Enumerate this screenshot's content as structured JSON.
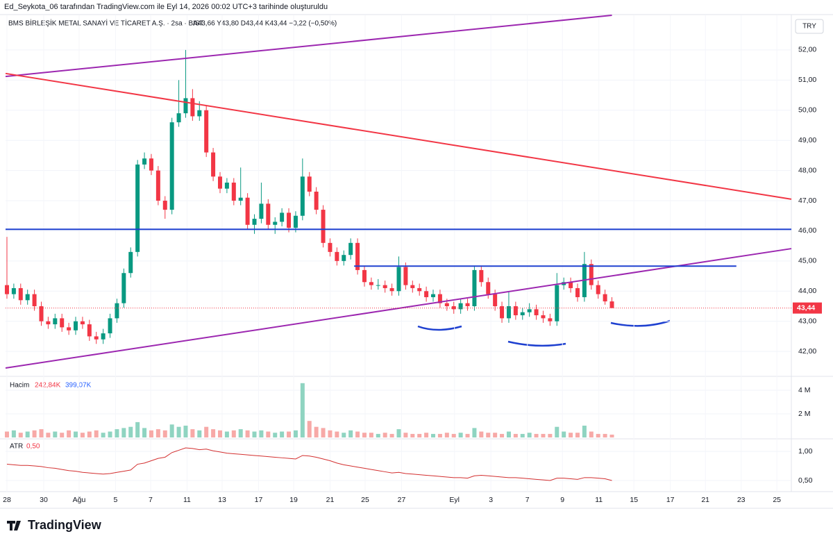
{
  "header": {
    "caption": "Ed_Seykota_06 tarafından TradingView.com ile Eyl 14, 2026 00:02 UTC+3 tarihinde oluşturuldu",
    "symbol": "BMS BİRLEŞİK METAL SANAYİ VE TİCARET A.Ş. · 2sa · BIST",
    "ohlc": "A43,66 Y43,80 D43,44 K43,44 −0,22 (−0,50%)",
    "currency": "TRY"
  },
  "footer": {
    "brand": "TradingView"
  },
  "chart_data": {
    "type": "candlestick",
    "up_color": "#089981",
    "down_color": "#f23645",
    "xlim": [
      -0.2,
      114.1
    ],
    "ylim": [
      41.22,
      53.15
    ],
    "yticks": [
      {
        "value": 52,
        "label": "52,00"
      },
      {
        "value": 51,
        "label": "51,00"
      },
      {
        "value": 50,
        "label": "50,00"
      },
      {
        "value": 49,
        "label": "49,00"
      },
      {
        "value": 48,
        "label": "48,00"
      },
      {
        "value": 47,
        "label": "47,00"
      },
      {
        "value": 46,
        "label": "46,00"
      },
      {
        "value": 45,
        "label": "45,00"
      },
      {
        "value": 44,
        "label": "44,00"
      },
      {
        "value": 43,
        "label": "43,00"
      },
      {
        "value": 42,
        "label": "42,00"
      }
    ],
    "xticks": [
      {
        "value": 0,
        "label": "28"
      },
      {
        "value": 5.35,
        "label": "30"
      },
      {
        "value": 10.5,
        "label": "Ağu"
      },
      {
        "value": 15.8,
        "label": "5"
      },
      {
        "value": 20.9,
        "label": "7"
      },
      {
        "value": 26.2,
        "label": "11"
      },
      {
        "value": 31.3,
        "label": "13"
      },
      {
        "value": 36.6,
        "label": "17"
      },
      {
        "value": 41.7,
        "label": "19"
      },
      {
        "value": 47,
        "label": "21"
      },
      {
        "value": 52.1,
        "label": "25"
      },
      {
        "value": 57.4,
        "label": "27"
      },
      {
        "value": 65.1,
        "label": "Eyl"
      },
      {
        "value": 70.4,
        "label": "3"
      },
      {
        "value": 75.7,
        "label": "7"
      },
      {
        "value": 80.8,
        "label": "9"
      },
      {
        "value": 86.1,
        "label": "11"
      },
      {
        "value": 91.2,
        "label": "15"
      },
      {
        "value": 96.5,
        "label": "17"
      },
      {
        "value": 101.6,
        "label": "21"
      },
      {
        "value": 106.8,
        "label": "23"
      },
      {
        "value": 112,
        "label": "25"
      }
    ],
    "last_price": {
      "value": 43.44,
      "label": "43,44"
    },
    "candles": [
      [
        44.2,
        45.8,
        43.75,
        43.9
      ],
      [
        43.9,
        44.25,
        43.75,
        44.1
      ],
      [
        44.1,
        44.25,
        43.55,
        43.7
      ],
      [
        43.7,
        44.05,
        43.55,
        43.9
      ],
      [
        43.9,
        44.05,
        43.35,
        43.5
      ],
      [
        43.5,
        43.65,
        42.85,
        43.0
      ],
      [
        43.0,
        43.15,
        42.75,
        42.9
      ],
      [
        42.9,
        43.25,
        42.75,
        43.1
      ],
      [
        43.1,
        43.25,
        42.65,
        42.8
      ],
      [
        42.8,
        42.95,
        42.55,
        42.7
      ],
      [
        42.7,
        43.15,
        42.55,
        43.0
      ],
      [
        43.0,
        43.15,
        42.75,
        42.9
      ],
      [
        42.9,
        43.05,
        42.35,
        42.5
      ],
      [
        42.5,
        42.65,
        42.25,
        42.4
      ],
      [
        42.4,
        42.75,
        42.25,
        42.6
      ],
      [
        42.6,
        43.25,
        42.45,
        43.1
      ],
      [
        43.1,
        43.75,
        42.95,
        43.6
      ],
      [
        43.6,
        44.75,
        43.45,
        44.6
      ],
      [
        44.6,
        45.45,
        44.45,
        45.3
      ],
      [
        45.3,
        48.35,
        45.15,
        48.2
      ],
      [
        48.2,
        48.6,
        48.05,
        48.4
      ],
      [
        48.4,
        48.55,
        47.85,
        48.0
      ],
      [
        48.0,
        48.15,
        46.85,
        47.0
      ],
      [
        47.0,
        47.15,
        46.4,
        46.7
      ],
      [
        46.7,
        49.75,
        46.55,
        49.6
      ],
      [
        49.6,
        51.0,
        49.45,
        49.9
      ],
      [
        49.9,
        52.0,
        49.75,
        50.4
      ],
      [
        50.4,
        50.7,
        49.65,
        49.8
      ],
      [
        49.8,
        50.3,
        49.65,
        50.0
      ],
      [
        50.0,
        50.15,
        48.45,
        48.6
      ],
      [
        48.6,
        48.75,
        47.65,
        47.8
      ],
      [
        47.8,
        47.95,
        47.25,
        47.4
      ],
      [
        47.4,
        47.75,
        47.25,
        47.6
      ],
      [
        47.6,
        47.75,
        46.85,
        47.0
      ],
      [
        47.0,
        48.1,
        46.85,
        47.1
      ],
      [
        47.1,
        47.25,
        46.05,
        46.2
      ],
      [
        46.2,
        46.55,
        45.9,
        46.4
      ],
      [
        46.4,
        47.6,
        46.25,
        46.9
      ],
      [
        46.9,
        47.05,
        46.05,
        46.2
      ],
      [
        46.2,
        46.45,
        45.9,
        46.3
      ],
      [
        46.3,
        46.75,
        46.15,
        46.6
      ],
      [
        46.6,
        46.75,
        45.95,
        46.1
      ],
      [
        46.1,
        46.65,
        45.95,
        46.5
      ],
      [
        46.5,
        48.4,
        46.35,
        47.8
      ],
      [
        47.8,
        47.95,
        47.15,
        47.3
      ],
      [
        47.3,
        47.45,
        46.55,
        46.7
      ],
      [
        46.7,
        46.85,
        45.45,
        45.6
      ],
      [
        45.6,
        45.75,
        45.15,
        45.3
      ],
      [
        45.3,
        45.45,
        44.85,
        45.0
      ],
      [
        45.0,
        45.35,
        44.85,
        45.2
      ],
      [
        45.2,
        45.75,
        45.05,
        45.6
      ],
      [
        45.6,
        45.75,
        44.55,
        44.7
      ],
      [
        44.7,
        44.85,
        44.15,
        44.3
      ],
      [
        44.3,
        44.45,
        44.05,
        44.2
      ],
      [
        44.2,
        44.4,
        44.05,
        44.2
      ],
      [
        44.2,
        44.35,
        43.95,
        44.1
      ],
      [
        44.1,
        44.25,
        43.85,
        44.0
      ],
      [
        44.0,
        45.15,
        43.85,
        44.8
      ],
      [
        44.8,
        44.95,
        44.05,
        44.2
      ],
      [
        44.2,
        44.35,
        43.95,
        44.1
      ],
      [
        44.1,
        44.25,
        43.85,
        44.0
      ],
      [
        44.0,
        44.15,
        43.65,
        43.8
      ],
      [
        43.8,
        44.05,
        43.65,
        43.9
      ],
      [
        43.9,
        44.05,
        43.45,
        43.6
      ],
      [
        43.6,
        43.75,
        43.35,
        43.5
      ],
      [
        43.5,
        43.65,
        43.25,
        43.4
      ],
      [
        43.4,
        43.75,
        43.25,
        43.6
      ],
      [
        43.6,
        43.75,
        43.35,
        43.5
      ],
      [
        43.5,
        44.85,
        43.35,
        44.7
      ],
      [
        44.7,
        44.85,
        44.15,
        44.3
      ],
      [
        44.3,
        44.45,
        43.75,
        43.9
      ],
      [
        43.9,
        44.05,
        43.35,
        43.5
      ],
      [
        43.5,
        43.65,
        42.95,
        43.1
      ],
      [
        43.1,
        44.0,
        42.95,
        43.5
      ],
      [
        43.5,
        43.65,
        43.05,
        43.2
      ],
      [
        43.2,
        43.45,
        43.05,
        43.3
      ],
      [
        43.3,
        43.6,
        43.15,
        43.4
      ],
      [
        43.4,
        43.55,
        43.05,
        43.2
      ],
      [
        43.2,
        43.35,
        42.95,
        43.1
      ],
      [
        43.1,
        43.25,
        42.85,
        43.0
      ],
      [
        43.0,
        44.6,
        42.85,
        44.2
      ],
      [
        44.2,
        44.45,
        44.05,
        44.3
      ],
      [
        44.3,
        44.45,
        43.95,
        44.1
      ],
      [
        44.1,
        44.25,
        43.65,
        43.8
      ],
      [
        43.8,
        45.3,
        43.65,
        44.9
      ],
      [
        44.9,
        45.05,
        44.05,
        44.2
      ],
      [
        44.2,
        44.35,
        43.75,
        43.9
      ],
      [
        43.9,
        44.05,
        43.55,
        43.66
      ],
      [
        43.66,
        43.8,
        43.44,
        43.44
      ]
    ],
    "drawings": [
      {
        "color": "#9c27b0",
        "points": [
          [
            -0.2,
            51.12
          ],
          [
            88,
            53.15
          ]
        ]
      },
      {
        "color": "#f23645",
        "points": [
          [
            -0.2,
            51.22
          ],
          [
            114.1,
            47.05
          ]
        ]
      },
      {
        "color": "#9c27b0",
        "points": [
          [
            -0.2,
            41.45
          ],
          [
            114.1,
            45.41
          ]
        ]
      },
      {
        "color": "#1e40d0",
        "points": [
          [
            -0.2,
            46.05
          ],
          [
            114.1,
            46.05
          ]
        ]
      },
      {
        "color": "#1e40d0",
        "points": [
          [
            50.5,
            44.83
          ],
          [
            106.1,
            44.83
          ]
        ]
      }
    ],
    "volume": {
      "title": "Hacim",
      "value_down": "242,84K",
      "value_up": "399,07K",
      "ylim": [
        0,
        5
      ],
      "yticks": [
        {
          "value": 4,
          "label": "4 M"
        },
        {
          "value": 2,
          "label": "2 M"
        }
      ],
      "values": [
        0.5,
        0.6,
        0.4,
        0.5,
        0.6,
        0.7,
        0.4,
        0.5,
        0.4,
        0.6,
        0.5,
        0.4,
        0.5,
        0.6,
        0.4,
        0.5,
        0.7,
        0.8,
        0.9,
        1.3,
        0.8,
        0.6,
        0.7,
        0.6,
        1.1,
        0.9,
        1.0,
        0.7,
        0.6,
        0.9,
        0.7,
        0.6,
        0.5,
        0.6,
        0.7,
        0.6,
        0.5,
        0.6,
        0.5,
        0.4,
        0.5,
        0.5,
        0.6,
        4.6,
        1.4,
        0.9,
        0.8,
        0.6,
        0.5,
        0.4,
        0.6,
        0.5,
        0.4,
        0.4,
        0.3,
        0.4,
        0.3,
        0.7,
        0.4,
        0.3,
        0.3,
        0.4,
        0.3,
        0.3,
        0.4,
        0.3,
        0.4,
        0.3,
        0.8,
        0.5,
        0.4,
        0.4,
        0.3,
        0.5,
        0.3,
        0.3,
        0.4,
        0.3,
        0.3,
        0.3,
        0.9,
        0.5,
        0.4,
        0.4,
        1.0,
        0.5,
        0.3,
        0.3,
        0.24
      ]
    },
    "atr": {
      "title": "ATR",
      "value": "0,50",
      "color": "#d32f2f",
      "ylim": [
        0.345,
        1.18
      ],
      "yticks": [
        {
          "value": 1,
          "label": "1,00"
        },
        {
          "value": 0.5,
          "label": "0,50"
        }
      ],
      "values": [
        0.78,
        0.77,
        0.76,
        0.76,
        0.75,
        0.74,
        0.72,
        0.71,
        0.69,
        0.67,
        0.66,
        0.64,
        0.63,
        0.62,
        0.61,
        0.62,
        0.64,
        0.66,
        0.68,
        0.78,
        0.8,
        0.84,
        0.88,
        0.9,
        0.98,
        1.02,
        1.06,
        1.05,
        1.03,
        1.04,
        1.01,
        0.99,
        0.97,
        0.96,
        0.95,
        0.94,
        0.93,
        0.92,
        0.91,
        0.9,
        0.89,
        0.88,
        0.87,
        0.93,
        0.92,
        0.9,
        0.87,
        0.84,
        0.8,
        0.77,
        0.75,
        0.73,
        0.71,
        0.69,
        0.67,
        0.65,
        0.63,
        0.64,
        0.62,
        0.61,
        0.6,
        0.59,
        0.58,
        0.57,
        0.56,
        0.55,
        0.55,
        0.54,
        0.58,
        0.59,
        0.58,
        0.57,
        0.56,
        0.55,
        0.55,
        0.54,
        0.53,
        0.52,
        0.51,
        0.5,
        0.54,
        0.54,
        0.53,
        0.52,
        0.55,
        0.55,
        0.54,
        0.53,
        0.5
      ]
    }
  }
}
